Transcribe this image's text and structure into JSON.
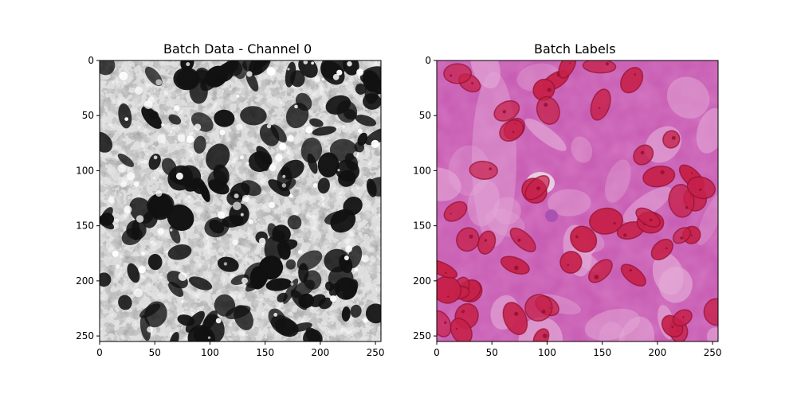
{
  "figure": {
    "panels": [
      {
        "title": "Batch Data - Channel 0",
        "x_ticks": [
          "0",
          "50",
          "100",
          "150",
          "200",
          "250"
        ],
        "y_ticks": [
          "0",
          "50",
          "100",
          "150",
          "200",
          "250"
        ],
        "image_desc": "grayscale",
        "xlim": [
          0,
          255
        ],
        "ylim": [
          255,
          0
        ]
      },
      {
        "title": "Batch Labels",
        "x_ticks": [
          "0",
          "50",
          "100",
          "150",
          "200",
          "250"
        ],
        "y_ticks": [
          "0",
          "50",
          "100",
          "150",
          "200",
          "250"
        ],
        "image_desc": "histology",
        "xlim": [
          0,
          255
        ],
        "ylim": [
          255,
          0
        ]
      }
    ]
  },
  "colors": {
    "gray_bg": "#e8e8e8",
    "gray_blob": "#111111",
    "pink_bg": "#c95fb4",
    "pink_light": "#e3a9d6",
    "nucleus": "#c6214a",
    "nucleus_dark": "#8e0f2d"
  }
}
